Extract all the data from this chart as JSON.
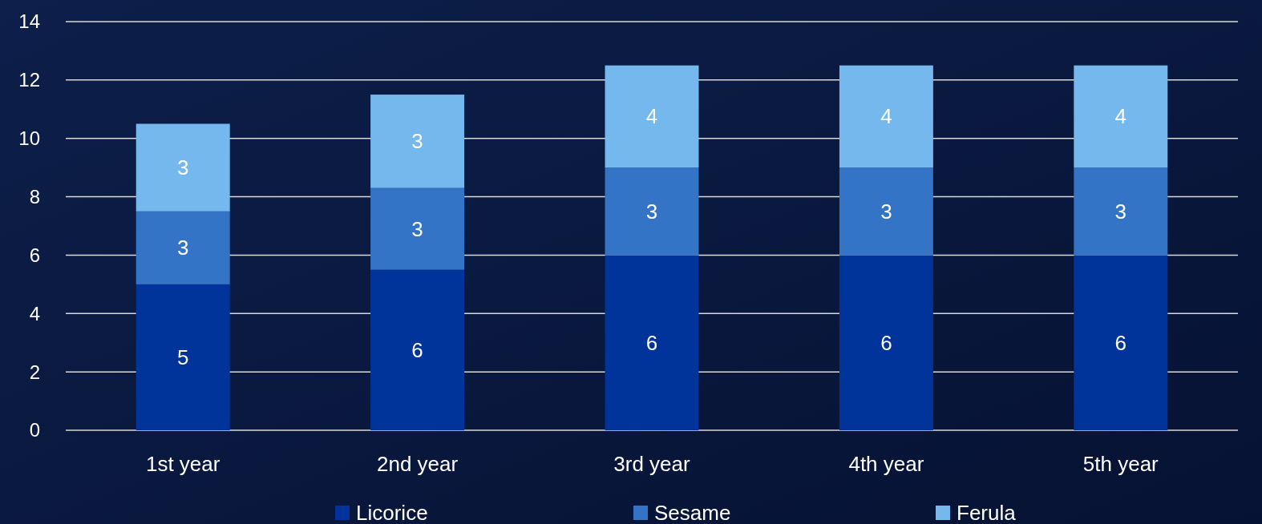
{
  "chart_data": {
    "type": "bar",
    "stacked": true,
    "categories": [
      "1st year",
      "2nd year",
      "3rd year",
      "4th year",
      "5th year"
    ],
    "series": [
      {
        "name": "Licorice",
        "color": "#00349a",
        "values": [
          5,
          5.5,
          6,
          6,
          6
        ],
        "value_labels": [
          "5",
          "6",
          "6",
          "6",
          "6"
        ]
      },
      {
        "name": "Sesame",
        "color": "#3474c6",
        "values": [
          2.5,
          2.8,
          3,
          3,
          3
        ],
        "value_labels": [
          "3",
          "3",
          "3",
          "3",
          "3"
        ]
      },
      {
        "name": "Ferula",
        "color": "#74b8ee",
        "values": [
          3,
          3.2,
          3.5,
          3.5,
          3.5
        ],
        "value_labels": [
          "3",
          "3",
          "4",
          "4",
          "4"
        ]
      }
    ],
    "ylim": [
      0,
      14
    ],
    "yticks": [
      0,
      2,
      4,
      6,
      8,
      10,
      12,
      14
    ],
    "grid": "y",
    "legend": "bottom"
  }
}
